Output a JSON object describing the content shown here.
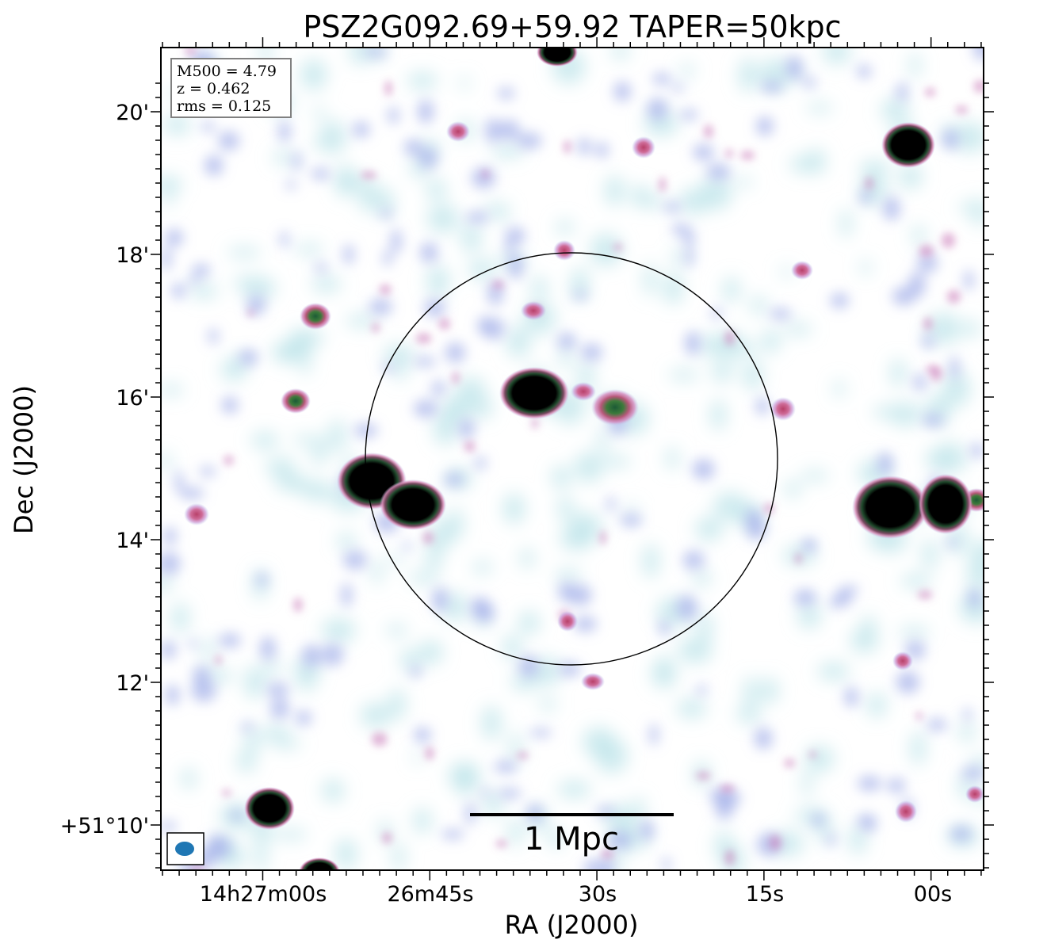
{
  "title": "PSZ2G092.69+59.92 TAPER=50kpc",
  "xlabel": "RA (J2000)",
  "ylabel": "Dec (J2000)",
  "x_ticks": [
    "14h27m00s",
    "26m45s",
    "30s",
    "15s",
    "00s"
  ],
  "y_ticks": [
    "20'",
    "18'",
    "16'",
    "14'",
    "12'",
    "+51°10'"
  ],
  "info_box": {
    "m500": "M500 = 4.79",
    "z": "z = 0.462",
    "rms": "rms = 0.125"
  },
  "scale_bar_label": "1 Mpc",
  "colors": {
    "source_core": "#000000",
    "source_halo": "#2e6b3a",
    "emission_mid": "#c877b6",
    "emission_low": "#a8b4ea",
    "emission_faint": "#bfe4ea",
    "beam": "#1f77b4"
  }
}
